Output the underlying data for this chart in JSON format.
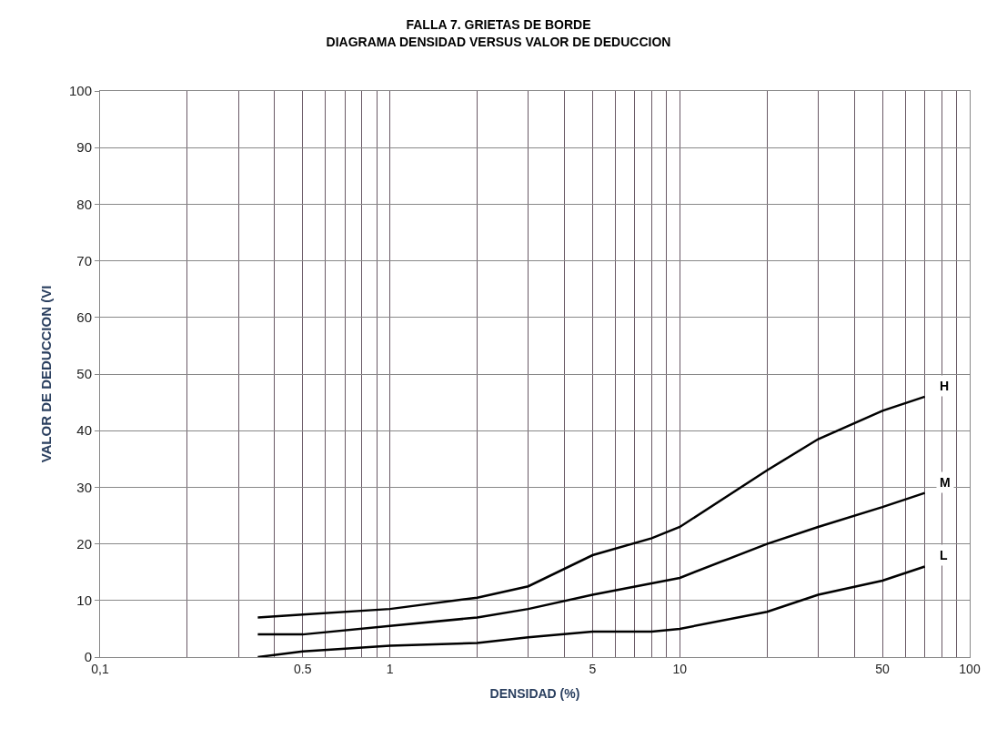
{
  "chart_data": {
    "type": "line",
    "title": "FALLA 7. GRIETAS DE BORDE",
    "subtitle": "DIAGRAMA DENSIDAD VERSUS VALOR DE DEDUCCION",
    "xlabel": "DENSIDAD (%)",
    "ylabel": "VALOR DE DEDUCCION (VI",
    "log": "x",
    "grid": true,
    "legend": false,
    "marker": "none",
    "line_style": "solid",
    "xlim": [
      0.1,
      100
    ],
    "xticks": [
      {
        "value": 0.1,
        "label": "0,1"
      },
      0.5,
      1,
      5,
      10,
      50,
      100
    ],
    "ylim": [
      0,
      100
    ],
    "yticks": [
      0,
      10,
      20,
      30,
      40,
      50,
      60,
      70,
      80,
      90,
      100
    ],
    "series": [
      {
        "name": "H",
        "color": "#000000",
        "x": [
          0.35,
          0.5,
          1,
          2,
          3,
          5,
          8,
          10,
          20,
          30,
          50,
          70
        ],
        "values": [
          7,
          7.5,
          8.5,
          10.5,
          12.5,
          18,
          21,
          23,
          33,
          38.5,
          43.5,
          46
        ]
      },
      {
        "name": "M",
        "color": "#000000",
        "x": [
          0.35,
          0.5,
          1,
          2,
          3,
          5,
          10,
          20,
          30,
          50,
          70
        ],
        "values": [
          4,
          4,
          5.5,
          7,
          8.5,
          11,
          14,
          20,
          23,
          26.5,
          29
        ]
      },
      {
        "name": "L",
        "color": "#000000",
        "x": [
          0.35,
          0.5,
          0.7,
          1,
          2,
          3,
          5,
          8,
          10,
          20,
          30,
          50,
          70
        ],
        "values": [
          0,
          1,
          1.5,
          2,
          2.5,
          3.5,
          4.5,
          4.5,
          5,
          8,
          11,
          13.5,
          16
        ]
      }
    ]
  }
}
